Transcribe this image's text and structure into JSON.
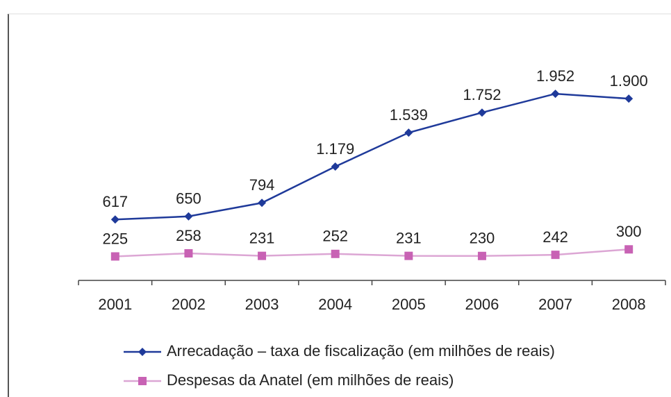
{
  "chart_data": {
    "type": "line",
    "categories": [
      "2001",
      "2002",
      "2003",
      "2004",
      "2005",
      "2006",
      "2007",
      "2008"
    ],
    "series": [
      {
        "name": "Arrecadação – taxa de fiscalização (em milhões de reais)",
        "color": "#1f3a9a",
        "values": [
          617,
          650,
          794,
          1179,
          1539,
          1752,
          1952,
          1900
        ],
        "value_labels": [
          "617",
          "650",
          "794",
          "1.179",
          "1.539",
          "1.752",
          "1.952",
          "1.900"
        ]
      },
      {
        "name": "Despesas da Anatel (em milhões de reais)",
        "color": "#c862b4",
        "values": [
          225,
          258,
          231,
          252,
          231,
          230,
          242,
          300
        ]
      }
    ],
    "ylim": [
      0,
      2100
    ]
  }
}
